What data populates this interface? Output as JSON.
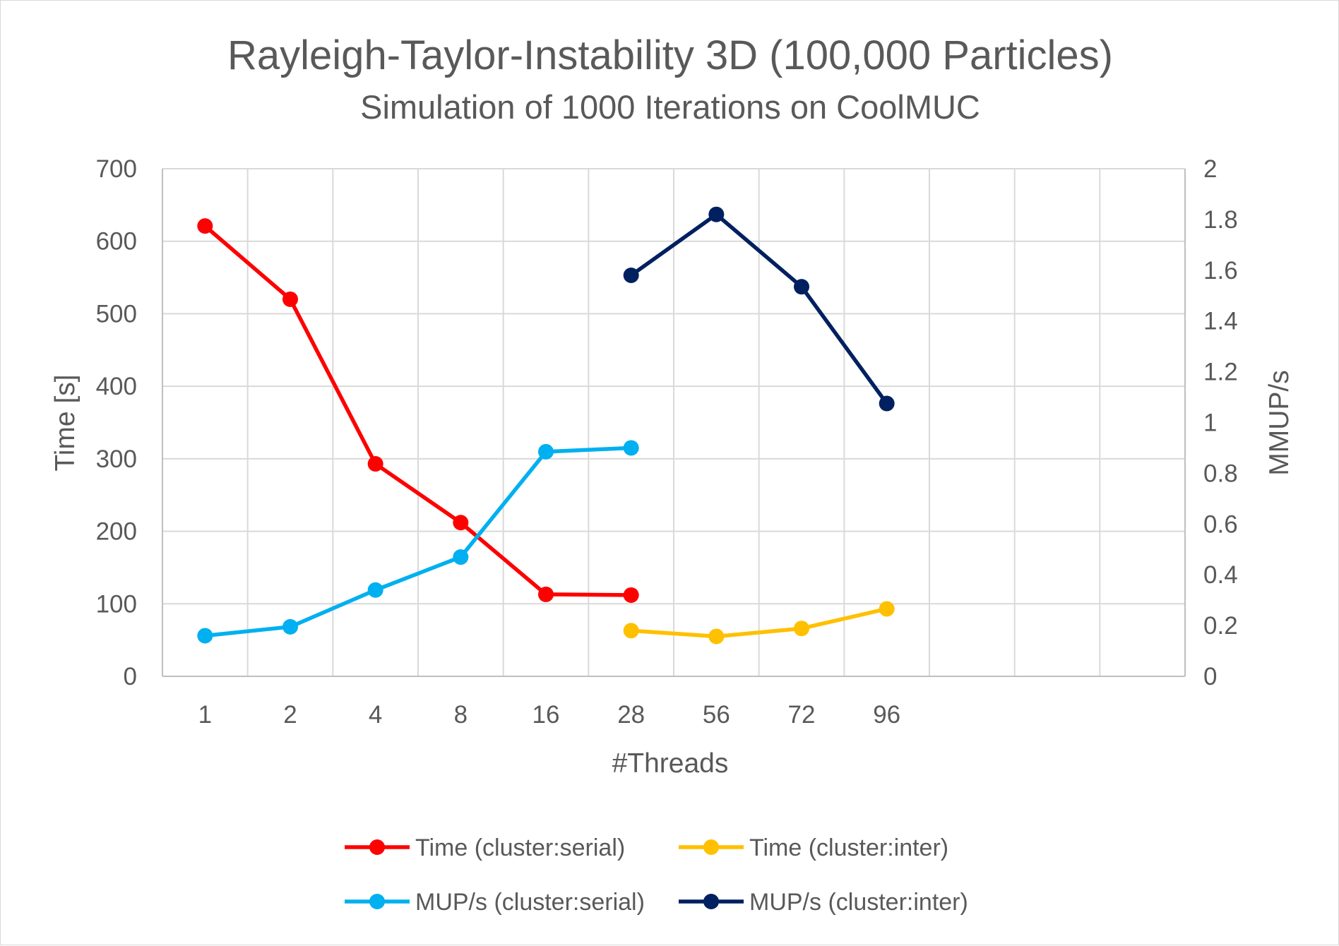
{
  "chart_data": {
    "type": "line",
    "title": "Rayleigh-Taylor-Instability 3D (100,000 Particles)",
    "subtitle": "Simulation of 1000 Iterations on CoolMUC",
    "xlabel": "#Threads",
    "ylabel": "Time [s]",
    "y2label": "MMUP/s",
    "categories": [
      "1",
      "2",
      "4",
      "8",
      "16",
      "28",
      "56",
      "72",
      "96"
    ],
    "ylim": [
      0,
      700
    ],
    "yticks": [
      0,
      100,
      200,
      300,
      400,
      500,
      600,
      700
    ],
    "y2lim": [
      0,
      2
    ],
    "y2ticks": [
      "0",
      "0.2",
      "0.4",
      "0.6",
      "0.8",
      "1",
      "1.2",
      "1.4",
      "1.6",
      "1.8",
      "2"
    ],
    "grid": true,
    "legend_position": "bottom",
    "series": [
      {
        "name": "Time (cluster:serial)",
        "axis": "left",
        "color": "#ff0000",
        "values": [
          621,
          520,
          293,
          212,
          113,
          112,
          null,
          null,
          null
        ]
      },
      {
        "name": "Time (cluster:inter)",
        "axis": "left",
        "color": "#ffc000",
        "values": [
          null,
          null,
          null,
          null,
          null,
          63,
          55,
          66,
          93
        ]
      },
      {
        "name": "MUP/s (cluster:serial)",
        "axis": "right",
        "color": "#00b0f0",
        "values": [
          0.16,
          0.195,
          0.34,
          0.47,
          0.885,
          0.9,
          null,
          null,
          null
        ]
      },
      {
        "name": "MUP/s (cluster:inter)",
        "axis": "right",
        "color": "#002060",
        "values": [
          null,
          null,
          null,
          null,
          null,
          1.58,
          1.82,
          1.535,
          1.075
        ]
      }
    ]
  }
}
